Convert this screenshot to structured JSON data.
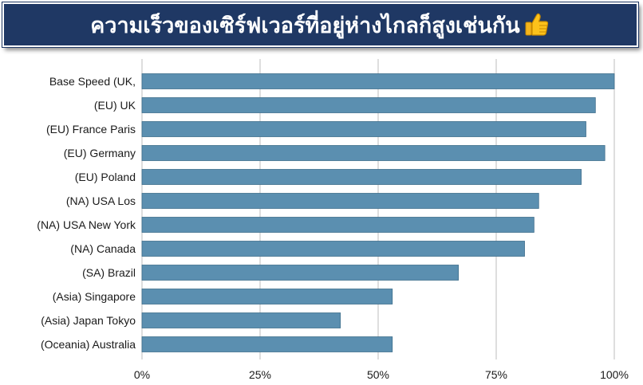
{
  "banner": {
    "title": "ความเร็วของเซิร์ฟเวอร์ที่อยู่ห่างไกลก็สูงเช่นกัน",
    "icon": "thumbs-up-icon"
  },
  "colors": {
    "banner_background": "#1f3864",
    "bar": "#5b8fb0",
    "bar_outline": "#3f6e8c",
    "gridline": "#c8c8c8"
  },
  "chart_data": {
    "type": "bar",
    "orientation": "horizontal",
    "categories": [
      "Base Speed (UK,",
      "(EU) UK",
      "(EU) France Paris",
      "(EU) Germany",
      "(EU) Poland",
      "(NA) USA Los",
      "(NA) USA New York",
      "(NA) Canada",
      "(SA) Brazil",
      "(Asia) Singapore",
      "(Asia) Japan Tokyo",
      "(Oceania) Australia"
    ],
    "values": [
      100,
      96,
      94,
      98,
      93,
      84,
      83,
      81,
      67,
      53,
      42,
      53
    ],
    "xlim": [
      0,
      100
    ],
    "x_ticks": [
      "0%",
      "25%",
      "50%",
      "75%",
      "100%"
    ],
    "grid": true,
    "legend": "none"
  }
}
